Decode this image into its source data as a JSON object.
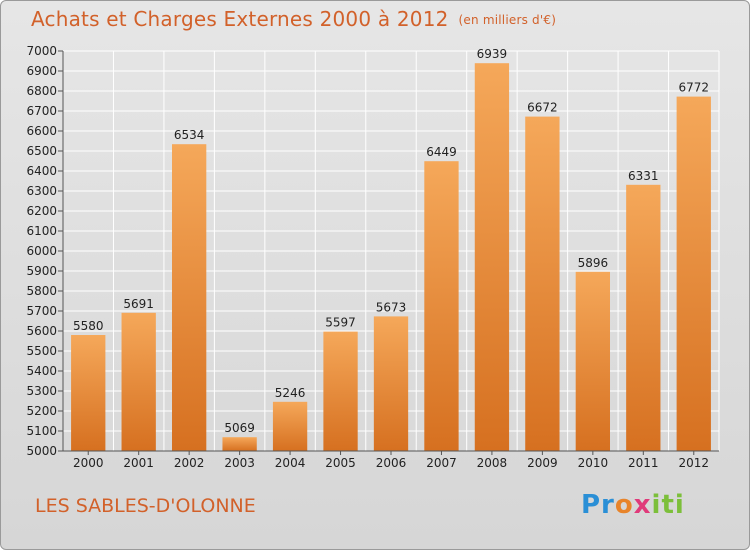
{
  "header": {
    "title": "Achats et Charges Externes 2000 à 2012",
    "subtitle": "(en milliers d'€)"
  },
  "footer": {
    "city": "LES SABLES-D'OLONNE",
    "logo": [
      "Pr",
      "o",
      "x",
      "iti"
    ]
  },
  "colors": {
    "accent": "#d2612a",
    "bar_top": "#f5a85a",
    "bar_bottom": "#d67020",
    "grid": "#ffffff"
  },
  "chart_data": {
    "type": "bar",
    "title": "Achats et Charges Externes 2000 à 2012",
    "subtitle": "(en milliers d'€)",
    "xlabel": "",
    "ylabel": "",
    "categories": [
      "2000",
      "2001",
      "2002",
      "2003",
      "2004",
      "2005",
      "2006",
      "2007",
      "2008",
      "2009",
      "2010",
      "2011",
      "2012"
    ],
    "values": [
      5580,
      5691,
      6534,
      5069,
      5246,
      5597,
      5673,
      6449,
      6939,
      6672,
      5896,
      6331,
      6772
    ],
    "ylim": [
      5000,
      7000
    ],
    "ytick_step": 100,
    "grid": true,
    "legend": "none"
  }
}
